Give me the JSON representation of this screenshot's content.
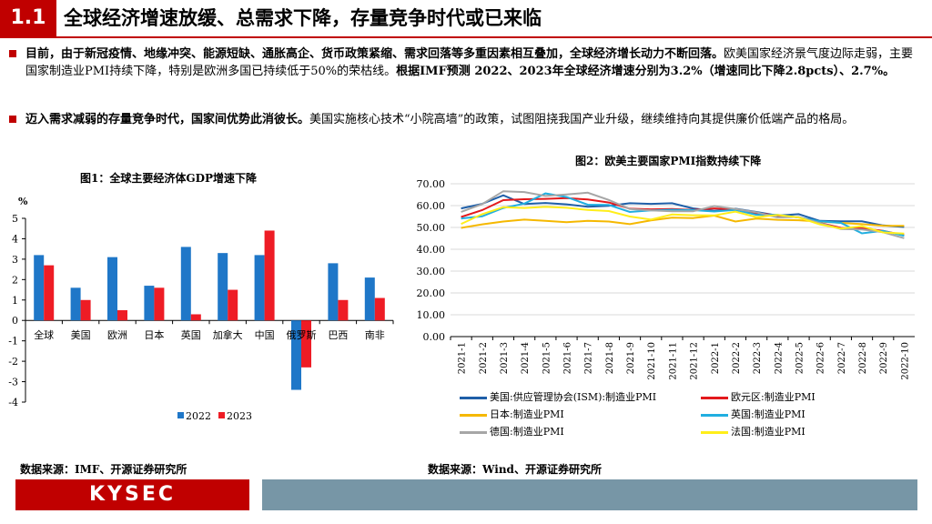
{
  "header": {
    "number": "1.1",
    "title": "全球经济增速放缓、总需求下降，存量竞争时代或已来临"
  },
  "bullets": [
    {
      "bold1": "目前，由于新冠疫情、地缘冲突、能源短缺、通胀高企、货币政策紧缩、需求回落等多重因素相互叠加，全球经济增长动力不断回落。",
      "plain": "欧美国家经济景气度边际走弱，主要国家制造业PMI持续下降，特别是欧洲多国已持续低于50%的荣枯线。",
      "bold2": "根据IMF预测 2022、2023年全球经济增速分别为3.2%（增速同比下降2.8pcts）、2.7%。"
    },
    {
      "bold1": "迈入需求减弱的存量竞争时代，国家间优势此消彼长。",
      "plain": "美国实施核心技术“小院高墙”的政策，试图阻挠我国产业升级，继续维持向其提供廉价低端产品的格局。",
      "bold2": ""
    }
  ],
  "sources": {
    "left": "数据来源：IMF、开源证券研究所",
    "right": "数据来源：Wind、开源证券研究所"
  },
  "footer": {
    "logo": "KYSEC"
  },
  "colors": {
    "accent": "#c00000",
    "footer_bar": "#7796a6"
  },
  "chart_data": [
    {
      "type": "bar",
      "title": "图1：全球主要经济体GDP增速下降",
      "ylabel": "%",
      "ylim": [
        -4,
        5
      ],
      "yticks": [
        -4,
        -3,
        -2,
        -1,
        0,
        1,
        2,
        3,
        4,
        5
      ],
      "categories": [
        "全球",
        "美国",
        "欧洲",
        "日本",
        "英国",
        "加拿大",
        "中国",
        "俄罗斯",
        "巴西",
        "南非"
      ],
      "series": [
        {
          "name": "2022",
          "color": "#1f77c8",
          "values": [
            3.2,
            1.6,
            3.1,
            1.7,
            3.6,
            3.3,
            3.2,
            -3.4,
            2.8,
            2.1
          ]
        },
        {
          "name": "2023",
          "color": "#ee1c25",
          "values": [
            2.7,
            1.0,
            0.5,
            1.6,
            0.3,
            1.5,
            4.4,
            -2.3,
            1.0,
            1.1
          ]
        }
      ],
      "legend": "bottom"
    },
    {
      "type": "line",
      "title": "图2：欧美主要国家PMI指数持续下降",
      "ylim": [
        0,
        70
      ],
      "yticks": [
        "0.00",
        "10.00",
        "20.00",
        "30.00",
        "40.00",
        "50.00",
        "60.00",
        "70.00"
      ],
      "x": [
        "2021-1",
        "2021-2",
        "2021-3",
        "2021-4",
        "2021-5",
        "2021-6",
        "2021-7",
        "2021-8",
        "2021-9",
        "2021-10",
        "2021-11",
        "2021-12",
        "2022-1",
        "2022-2",
        "2022-3",
        "2022-4",
        "2022-5",
        "2022-6",
        "2022-7",
        "2022-8",
        "2022-9",
        "2022-10"
      ],
      "series": [
        {
          "name": "美国:供应管理协会(ISM):制造业PMI",
          "color": "#1f5fa8",
          "values": [
            58.7,
            60.8,
            64.7,
            60.7,
            61.2,
            60.6,
            59.5,
            59.9,
            61.1,
            60.8,
            61.1,
            58.7,
            57.6,
            58.6,
            57.1,
            55.4,
            56.1,
            53.0,
            52.8,
            52.8,
            50.9,
            50.2
          ]
        },
        {
          "name": "欧元区:制造业PMI",
          "color": "#e3191c",
          "values": [
            54.8,
            57.9,
            62.5,
            62.9,
            63.1,
            63.4,
            62.8,
            61.4,
            58.6,
            58.3,
            58.4,
            58.0,
            58.7,
            58.2,
            56.5,
            55.5,
            54.6,
            52.1,
            49.8,
            49.6,
            48.4,
            46.4
          ]
        },
        {
          "name": "日本:制造业PMI",
          "color": "#f5b800",
          "values": [
            49.8,
            51.4,
            52.7,
            53.6,
            53.0,
            52.4,
            53.0,
            52.7,
            51.5,
            53.2,
            54.5,
            54.3,
            55.4,
            52.7,
            54.1,
            53.5,
            53.3,
            52.7,
            52.1,
            51.5,
            50.8,
            50.7
          ]
        },
        {
          "name": "英国:制造业PMI",
          "color": "#20aee0",
          "values": [
            54.1,
            55.1,
            58.9,
            60.9,
            65.6,
            63.9,
            60.4,
            60.3,
            57.1,
            57.8,
            58.1,
            57.9,
            57.3,
            58.0,
            55.8,
            55.8,
            54.6,
            52.8,
            52.1,
            47.3,
            48.4,
            46.2
          ]
        },
        {
          "name": "德国:制造业PMI",
          "color": "#a6a6a6",
          "values": [
            57.1,
            60.7,
            66.6,
            66.2,
            64.4,
            65.1,
            65.9,
            62.6,
            58.4,
            57.8,
            57.4,
            57.4,
            59.8,
            58.4,
            56.9,
            54.6,
            54.8,
            52.0,
            49.3,
            49.1,
            47.8,
            45.1
          ]
        },
        {
          "name": "法国:制造业PMI",
          "color": "#ffee1a",
          "values": [
            51.6,
            56.1,
            59.3,
            58.9,
            59.4,
            59.0,
            58.0,
            57.5,
            55.0,
            53.6,
            55.9,
            55.6,
            55.5,
            57.2,
            54.7,
            55.7,
            54.6,
            51.4,
            49.5,
            50.6,
            47.7,
            47.2
          ]
        }
      ],
      "legend": "bottom"
    }
  ]
}
